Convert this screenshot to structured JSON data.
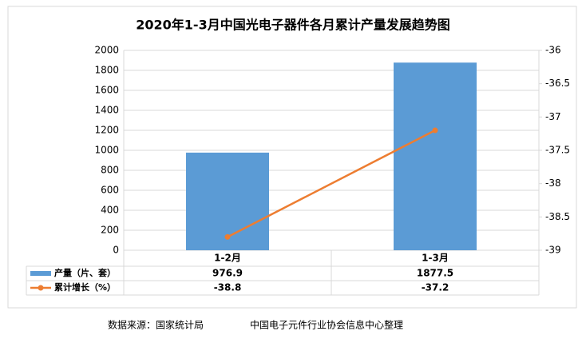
{
  "chart_data": {
    "type": "bar-line",
    "title": "2020年1-3月中国光电子器件各月累计产量发展趋势图",
    "categories": [
      "1-2月",
      "1-3月"
    ],
    "series": [
      {
        "name": "产量（片、套）",
        "type": "bar",
        "color": "#5b9bd5",
        "values": [
          976.9,
          1877.5
        ]
      },
      {
        "name": "累计增长（%）",
        "type": "line",
        "color": "#ed7d31",
        "axis": "y2",
        "values": [
          -38.8,
          -37.2
        ]
      }
    ],
    "ylim": [
      0,
      2000
    ],
    "yticks": [
      0,
      200,
      400,
      600,
      800,
      1000,
      1200,
      1400,
      1600,
      1800,
      2000
    ],
    "y2lim": [
      -39,
      -36
    ],
    "y2ticks": [
      -39,
      -38.5,
      -38,
      -37.5,
      -37,
      -36.5,
      -36
    ],
    "grid": true,
    "data_table": true
  },
  "footer": {
    "source": "数据来源：国家统计局",
    "compiler": "中国电子元件行业协会信息中心整理"
  }
}
